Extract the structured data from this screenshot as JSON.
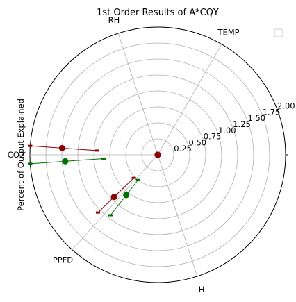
{
  "chart_data": {
    "type": "polar",
    "title": "1st Order Results of A*CQY",
    "ylabel": "Percent of Output Explained",
    "categories": [
      "TEMP",
      "RH",
      "CO2",
      "PPFD",
      "H"
    ],
    "category_angles_deg": [
      60,
      108,
      180,
      228,
      288
    ],
    "rlim": [
      0,
      2.0
    ],
    "r_tick_labels": [
      "0.25",
      "0.50",
      "0.75",
      "1.00",
      "1.25",
      "1.50",
      "1.75",
      "2.00"
    ],
    "r_ticks": [
      0.25,
      0.5,
      0.75,
      1.0,
      1.25,
      1.5,
      1.75,
      2.0
    ],
    "grid": true,
    "legend": "top-right (empty)",
    "series": [
      {
        "name": "green",
        "color": "#007000",
        "points": [
          {
            "category": "TEMP",
            "value": 0.0,
            "low": 0.0,
            "high": 0.0
          },
          {
            "category": "RH",
            "value": 0.0,
            "low": 0.0,
            "high": 0.0
          },
          {
            "category": "CO2",
            "value": 1.45,
            "low": 0.85,
            "high": 2.0
          },
          {
            "category": "PPFD",
            "value": 0.8,
            "low": 0.5,
            "high": 1.2
          },
          {
            "category": "H",
            "value": 0.0,
            "low": 0.0,
            "high": 0.0
          }
        ]
      },
      {
        "name": "red",
        "color": "#8b0000",
        "points": [
          {
            "category": "TEMP",
            "value": 0.0,
            "low": 0.0,
            "high": 0.0
          },
          {
            "category": "RH",
            "value": 0.0,
            "low": 0.0,
            "high": 0.0
          },
          {
            "category": "CO2",
            "value": 1.5,
            "low": 0.95,
            "high": 2.0
          },
          {
            "category": "PPFD",
            "value": 0.95,
            "low": 0.52,
            "high": 1.3
          },
          {
            "category": "H",
            "value": 0.0,
            "low": 0.0,
            "high": 0.0
          }
        ]
      }
    ]
  }
}
